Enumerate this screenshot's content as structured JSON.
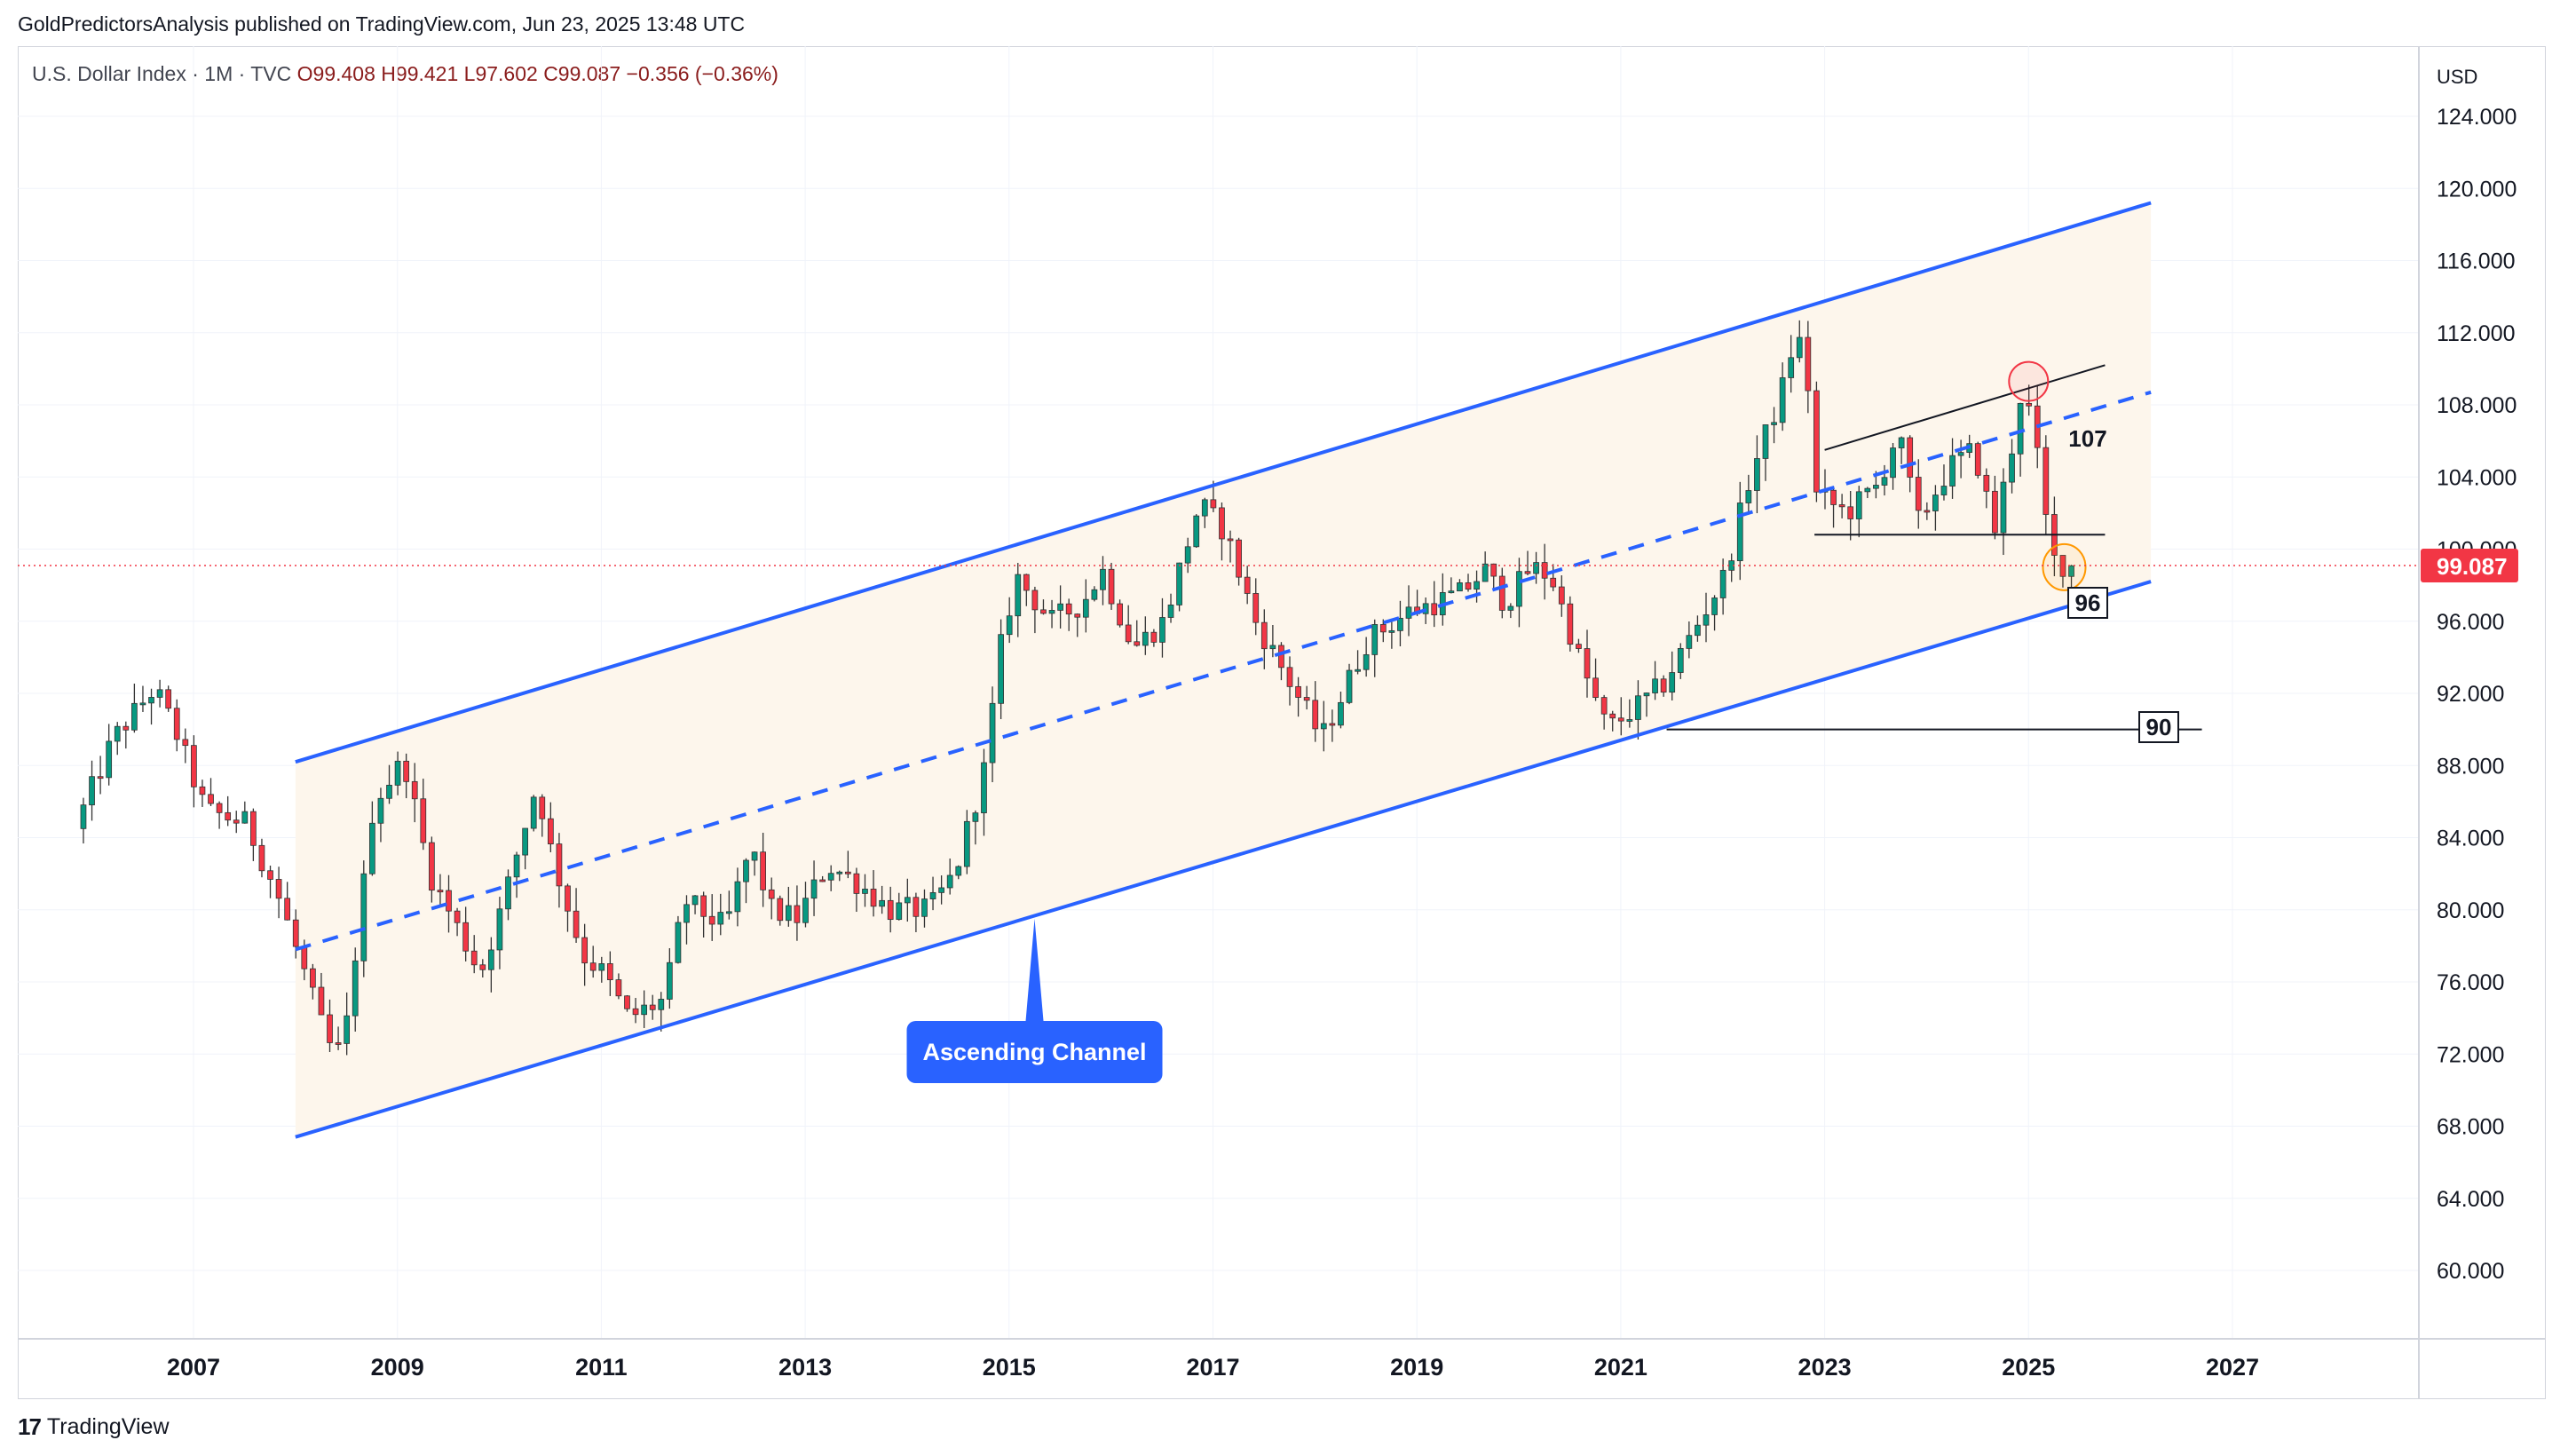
{
  "header": {
    "text": "GoldPredictorsAnalysis published on TradingView.com, Jun 23, 2025 13:48 UTC"
  },
  "legend": {
    "symbol": "U.S. Dollar Index · 1M · TVC",
    "open": "O99.408",
    "high": "H99.421",
    "low": "L97.602",
    "close": "C99.087",
    "change": "−0.356 (−0.36%)"
  },
  "footer": {
    "brand": "TradingView",
    "logo": "17"
  },
  "colors": {
    "up": "#089981",
    "down": "#f23645",
    "channel": "#2962ff",
    "channel_fill": "#fdf6ec",
    "price_line": "#f23645",
    "grid": "#f0f3fa"
  },
  "chart_data": {
    "type": "candlestick",
    "currency_label": "USD",
    "y_axis": {
      "ticks": [
        60,
        64,
        68,
        72,
        76,
        80,
        84,
        88,
        92,
        96,
        100,
        104,
        108,
        112,
        116,
        120,
        124
      ],
      "tick_labels": [
        "60.000",
        "64.000",
        "68.000",
        "72.000",
        "76.000",
        "80.000",
        "84.000",
        "88.000",
        "92.000",
        "96.000",
        "100.000",
        "104.000",
        "108.000",
        "112.000",
        "116.000",
        "120.000",
        "124.000"
      ]
    },
    "x_axis": {
      "ticks": [
        2007,
        2009,
        2011,
        2013,
        2015,
        2017,
        2019,
        2021,
        2023,
        2025,
        2027
      ],
      "tick_labels": [
        "2007",
        "2009",
        "2011",
        "2013",
        "2015",
        "2017",
        "2019",
        "2021",
        "2023",
        "2025",
        "2027"
      ]
    },
    "last_price": 99.087,
    "last_price_label": "99.087",
    "price_path": [
      [
        2005.92,
        84.5
      ],
      [
        2006.3,
        89.5
      ],
      [
        2006.7,
        92.3
      ],
      [
        2006.9,
        90.0
      ],
      [
        2007.2,
        85.5
      ],
      [
        2007.6,
        84.8
      ],
      [
        2007.9,
        81.0
      ],
      [
        2008.2,
        76.0
      ],
      [
        2008.4,
        72.5
      ],
      [
        2008.55,
        72.0
      ],
      [
        2008.85,
        86.0
      ],
      [
        2009.15,
        88.3
      ],
      [
        2009.4,
        82.0
      ],
      [
        2009.9,
        76.5
      ],
      [
        2010.1,
        80.0
      ],
      [
        2010.45,
        87.0
      ],
      [
        2010.6,
        83.0
      ],
      [
        2010.9,
        77.5
      ],
      [
        2011.1,
        76.5
      ],
      [
        2011.35,
        74.0
      ],
      [
        2011.7,
        75.0
      ],
      [
        2011.9,
        80.5
      ],
      [
        2012.3,
        79.0
      ],
      [
        2012.55,
        83.5
      ],
      [
        2012.75,
        80.0
      ],
      [
        2013.0,
        79.5
      ],
      [
        2013.3,
        82.5
      ],
      [
        2013.6,
        81.5
      ],
      [
        2013.9,
        80.0
      ],
      [
        2014.3,
        80.0
      ],
      [
        2014.55,
        82.0
      ],
      [
        2014.85,
        88.0
      ],
      [
        2015.0,
        94.5
      ],
      [
        2015.15,
        98.5
      ],
      [
        2015.5,
        96.0
      ],
      [
        2015.8,
        97.0
      ],
      [
        2016.0,
        98.8
      ],
      [
        2016.3,
        94.5
      ],
      [
        2016.6,
        96.0
      ],
      [
        2016.95,
        102.5
      ],
      [
        2017.2,
        101.0
      ],
      [
        2017.5,
        96.0
      ],
      [
        2017.8,
        93.0
      ],
      [
        2018.0,
        91.0
      ],
      [
        2018.15,
        89.5
      ],
      [
        2018.6,
        95.0
      ],
      [
        2019.0,
        96.5
      ],
      [
        2019.5,
        97.5
      ],
      [
        2019.75,
        98.8
      ],
      [
        2019.95,
        97.0
      ],
      [
        2020.2,
        99.0
      ],
      [
        2020.4,
        98.5
      ],
      [
        2020.7,
        93.5
      ],
      [
        2020.95,
        90.0
      ],
      [
        2021.3,
        91.5
      ],
      [
        2021.5,
        92.5
      ],
      [
        2021.8,
        95.5
      ],
      [
        2022.1,
        98.5
      ],
      [
        2022.35,
        104.0
      ],
      [
        2022.65,
        108.5
      ],
      [
        2022.8,
        112.0
      ],
      [
        2022.9,
        110.5
      ],
      [
        2023.0,
        103.0
      ],
      [
        2023.3,
        102.0
      ],
      [
        2023.6,
        103.5
      ],
      [
        2023.8,
        106.5
      ],
      [
        2024.0,
        101.5
      ],
      [
        2024.3,
        104.5
      ],
      [
        2024.55,
        105.5
      ],
      [
        2024.75,
        101.0
      ],
      [
        2024.95,
        106.5
      ],
      [
        2025.0,
        108.5
      ],
      [
        2025.1,
        107.5
      ],
      [
        2025.2,
        104.0
      ],
      [
        2025.3,
        99.5
      ],
      [
        2025.45,
        99.087
      ]
    ],
    "annotations": [
      {
        "type": "channel",
        "name": "Ascending Channel",
        "upper": [
          [
            2008.0,
            88.2
          ],
          [
            2026.2,
            119.2
          ]
        ],
        "lower": [
          [
            2008.0,
            67.4
          ],
          [
            2026.2,
            98.2
          ]
        ],
        "mid": [
          [
            2008.0,
            77.8
          ],
          [
            2026.2,
            108.7
          ]
        ]
      },
      {
        "type": "callout",
        "text": "Ascending Channel",
        "anchor": [
          2015.25,
          79.5
        ]
      },
      {
        "type": "level",
        "text": "107"
      },
      {
        "type": "level",
        "text": "96"
      },
      {
        "type": "level",
        "text": "90"
      },
      {
        "type": "hline",
        "y": 90.0,
        "from": 2021.45,
        "to": 2026.7
      },
      {
        "type": "hline",
        "y": 100.8,
        "from": 2022.9,
        "to": 2025.75
      },
      {
        "type": "trendline",
        "points": [
          [
            2023.0,
            105.5
          ],
          [
            2025.75,
            110.2
          ]
        ]
      }
    ]
  }
}
